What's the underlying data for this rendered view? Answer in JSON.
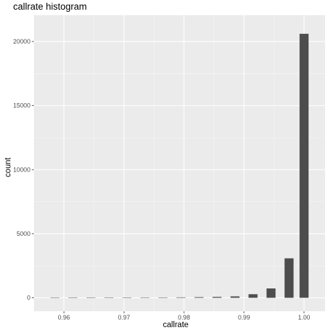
{
  "chart_data": {
    "type": "bar",
    "title": "callrate histogram",
    "xlabel": "callrate",
    "ylabel": "count",
    "xlim": [
      0.955,
      1.0035
    ],
    "ylim": [
      -1050,
      22050
    ],
    "x_ticks": [
      0.96,
      0.97,
      0.98,
      0.99,
      1.0
    ],
    "x_tick_labels": [
      "0.96",
      "0.97",
      "0.98",
      "0.99",
      "1.00"
    ],
    "y_ticks": [
      0,
      5000,
      10000,
      15000,
      20000
    ],
    "y_tick_labels": [
      "0",
      "5000",
      "10000",
      "15000",
      "20000"
    ],
    "bin_width": 0.0015,
    "bin_centers": [
      0.9585,
      0.9615,
      0.9645,
      0.9675,
      0.9705,
      0.9735,
      0.9765,
      0.9795,
      0.9825,
      0.9855,
      0.9885,
      0.9915,
      0.9945,
      0.9975,
      1.0
    ],
    "values": [
      2,
      4,
      6,
      8,
      12,
      18,
      25,
      35,
      50,
      70,
      110,
      280,
      730,
      3080,
      20600
    ],
    "grid": true,
    "background": "#ebebeb",
    "bar_color": "#4d4d4d"
  }
}
